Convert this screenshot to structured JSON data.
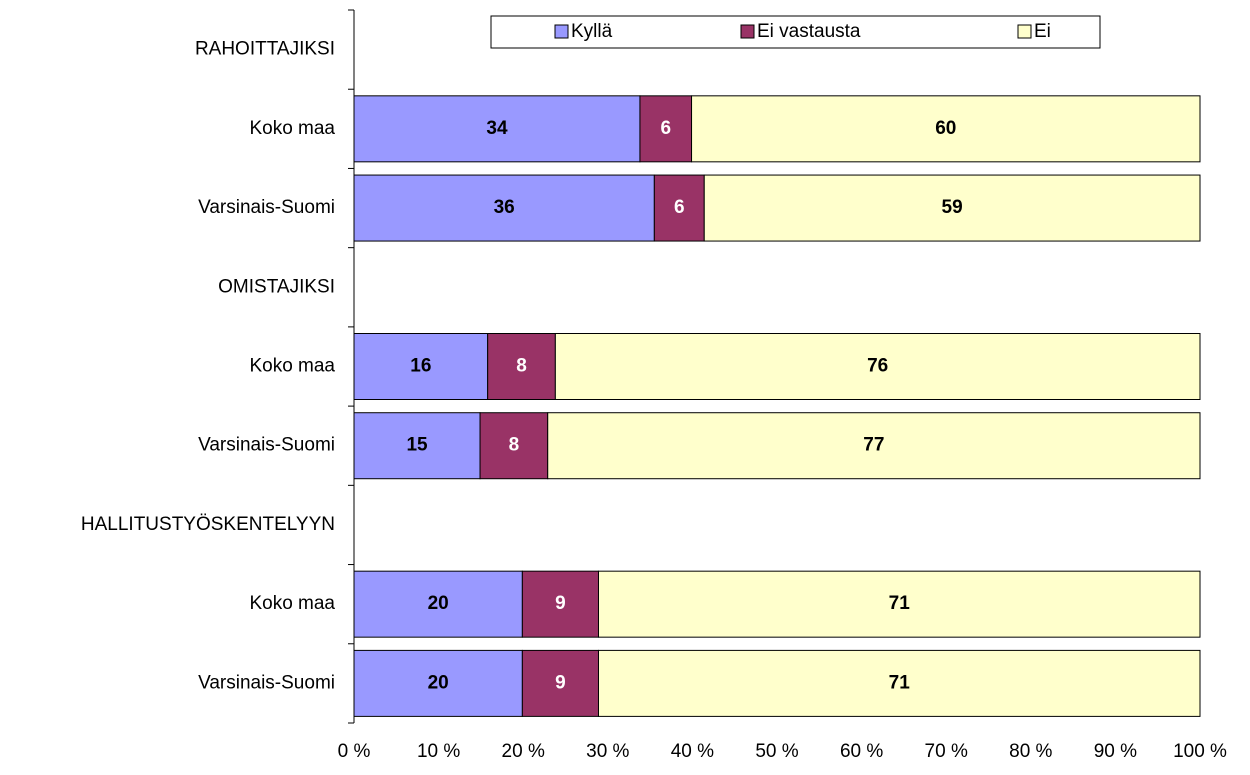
{
  "chart_data": {
    "type": "stacked-bar-horizontal",
    "categories": [
      "RAHOITTAJIKSI",
      "Koko maa",
      "Varsinais-Suomi",
      "OMISTAJIKSI",
      "Koko maa",
      "Varsinais-Suomi",
      "HALLITUSTYÖSKENTELYYN",
      "Koko maa",
      "Varsinais-Suomi"
    ],
    "series": [
      {
        "name": "Kyllä",
        "color": "#9999ff",
        "values": [
          null,
          33.8,
          35.5,
          null,
          15.8,
          14.9,
          null,
          19.9,
          19.9
        ],
        "value_labels": [
          null,
          "34",
          "36",
          null,
          "16",
          "15",
          null,
          "20",
          "20"
        ]
      },
      {
        "name": "Ei vastausta",
        "color": "#993366",
        "values": [
          null,
          6.1,
          5.9,
          null,
          8.0,
          8.0,
          null,
          9.0,
          9.0
        ],
        "value_labels": [
          null,
          "6",
          "6",
          null,
          "8",
          "8",
          null,
          "9",
          "9"
        ]
      },
      {
        "name": "Ei",
        "color": "#ffffcc",
        "values": [
          null,
          60.1,
          58.6,
          null,
          76.2,
          77.1,
          null,
          71.1,
          71.1
        ],
        "value_labels": [
          null,
          "60",
          "59",
          null,
          "76",
          "77",
          null,
          "71",
          "71"
        ]
      }
    ],
    "xlim": [
      0,
      100
    ],
    "xticks": [
      {
        "value": 0,
        "label": "0 %"
      },
      {
        "value": 10,
        "label": "10 %"
      },
      {
        "value": 20,
        "label": "20 %"
      },
      {
        "value": 30,
        "label": "30 %"
      },
      {
        "value": 40,
        "label": "40 %"
      },
      {
        "value": 50,
        "label": "50 %"
      },
      {
        "value": 60,
        "label": "60 %"
      },
      {
        "value": 70,
        "label": "70 %"
      },
      {
        "value": 80,
        "label": "80 %"
      },
      {
        "value": 90,
        "label": "90 %"
      },
      {
        "value": 100,
        "label": "100 %"
      }
    ],
    "legend": "top"
  }
}
